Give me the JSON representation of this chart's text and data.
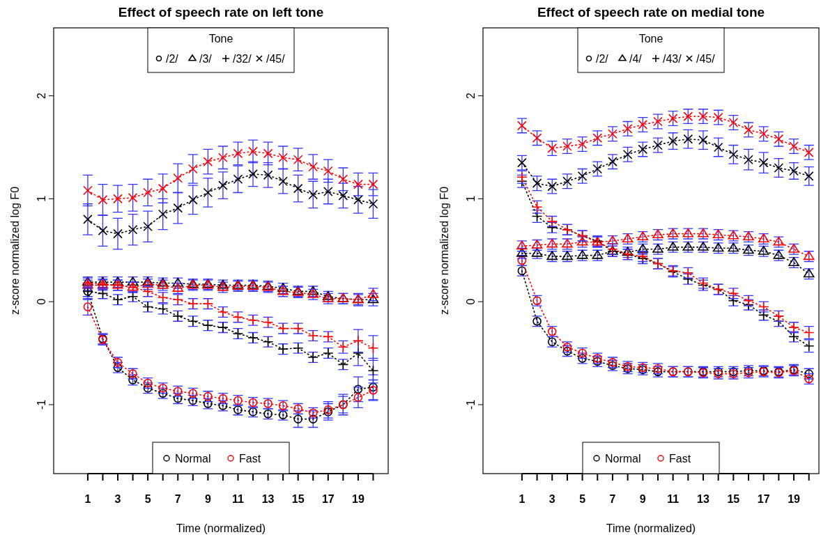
{
  "chart_data": [
    {
      "type": "line",
      "title": "Effect of speech rate on left tone",
      "xlabel": "Time (normalized)",
      "ylabel": "z-score normalized log F0",
      "legend_title": "Tone",
      "legend": "top",
      "line_style": "dotted",
      "annotations": [
        "Normal",
        "Fast"
      ],
      "x": [
        1,
        2,
        3,
        4,
        5,
        6,
        7,
        8,
        9,
        10,
        11,
        12,
        13,
        14,
        15,
        16,
        17,
        18,
        19,
        20
      ],
      "xlim": [
        -1.27,
        21.0
      ],
      "xticks": [
        1,
        {
          "value": 2,
          "label": null
        },
        3,
        {
          "value": 4,
          "label": null
        },
        5,
        {
          "value": 6,
          "label": null
        },
        7,
        {
          "value": 8,
          "label": null
        },
        9,
        {
          "value": 10,
          "label": null
        },
        11,
        {
          "value": 12,
          "label": null
        },
        13,
        {
          "value": 14,
          "label": null
        },
        15,
        {
          "value": 16,
          "label": null
        },
        17,
        {
          "value": 18,
          "label": null
        },
        19,
        {
          "value": 20,
          "label": null
        }
      ],
      "ylim": [
        -1.67,
        2.66
      ],
      "yticks": [
        -1,
        0,
        1,
        2
      ],
      "series": [
        {
          "name": "/2/",
          "color": "#000000",
          "marker": "circle",
          "values": [
            0.1,
            -0.36,
            -0.64,
            -0.76,
            -0.84,
            -0.89,
            -0.94,
            -0.96,
            -0.99,
            -1.01,
            -1.05,
            -1.07,
            -1.09,
            -1.1,
            -1.14,
            -1.14,
            -1.07,
            -1.0,
            -0.85,
            -0.83
          ],
          "errors": [
            0.05,
            0.05,
            0.05,
            0.05,
            0.05,
            0.05,
            0.05,
            0.05,
            0.05,
            0.05,
            0.05,
            0.05,
            0.05,
            0.05,
            0.08,
            0.08,
            0.08,
            0.1,
            0.12,
            0.12
          ]
        },
        {
          "color": "#ff0000",
          "marker": "circle",
          "values": [
            -0.05,
            -0.37,
            -0.59,
            -0.7,
            -0.79,
            -0.84,
            -0.87,
            -0.89,
            -0.92,
            -0.94,
            -0.96,
            -0.98,
            -0.99,
            -1.01,
            -1.04,
            -1.08,
            -1.05,
            -1.0,
            -0.93,
            -0.86
          ],
          "errors": [
            0.08,
            0.05,
            0.05,
            0.05,
            0.05,
            0.05,
            0.05,
            0.05,
            0.05,
            0.05,
            0.05,
            0.05,
            0.05,
            0.05,
            0.05,
            0.05,
            0.08,
            0.08,
            0.1,
            0.1
          ]
        },
        {
          "name": "/3/",
          "color": "#000000",
          "marker": "triangle",
          "values": [
            0.19,
            0.19,
            0.19,
            0.19,
            0.19,
            0.18,
            0.18,
            0.17,
            0.17,
            0.16,
            0.16,
            0.16,
            0.15,
            0.13,
            0.1,
            0.1,
            0.05,
            0.03,
            0.02,
            0.02
          ],
          "errors": [
            0.05,
            0.05,
            0.05,
            0.05,
            0.05,
            0.05,
            0.05,
            0.05,
            0.05,
            0.05,
            0.05,
            0.05,
            0.05,
            0.05,
            0.05,
            0.05,
            0.05,
            0.05,
            0.06,
            0.06
          ]
        },
        {
          "color": "#ff0000",
          "marker": "triangle",
          "values": [
            0.16,
            0.16,
            0.16,
            0.14,
            0.17,
            0.16,
            0.13,
            0.16,
            0.16,
            0.14,
            0.15,
            0.15,
            0.14,
            0.1,
            0.09,
            0.07,
            0.03,
            0.03,
            0.02,
            0.07
          ],
          "errors": [
            0.05,
            0.05,
            0.05,
            0.05,
            0.05,
            0.05,
            0.05,
            0.05,
            0.05,
            0.05,
            0.05,
            0.05,
            0.05,
            0.05,
            0.05,
            0.05,
            0.05,
            0.05,
            0.05,
            0.06
          ]
        },
        {
          "name": "/32/",
          "color": "#000000",
          "marker": "cross",
          "values": [
            0.1,
            0.08,
            0.02,
            0.05,
            -0.05,
            -0.07,
            -0.14,
            -0.19,
            -0.23,
            -0.25,
            -0.31,
            -0.35,
            -0.39,
            -0.46,
            -0.45,
            -0.54,
            -0.5,
            -0.61,
            -0.5,
            -0.67
          ],
          "errors": [
            0.08,
            0.05,
            0.05,
            0.05,
            0.05,
            0.05,
            0.05,
            0.05,
            0.05,
            0.05,
            0.05,
            0.05,
            0.05,
            0.05,
            0.05,
            0.05,
            0.05,
            0.05,
            0.12,
            0.12
          ]
        },
        {
          "color": "#ff0000",
          "marker": "cross",
          "values": [
            0.18,
            0.17,
            0.16,
            0.14,
            0.1,
            0.04,
            0.02,
            -0.02,
            -0.02,
            -0.1,
            -0.15,
            -0.18,
            -0.2,
            -0.26,
            -0.26,
            -0.33,
            -0.34,
            -0.44,
            -0.38,
            -0.45
          ],
          "errors": [
            0.05,
            0.05,
            0.05,
            0.05,
            0.05,
            0.05,
            0.05,
            0.05,
            0.05,
            0.05,
            0.05,
            0.05,
            0.05,
            0.05,
            0.05,
            0.05,
            0.05,
            0.06,
            0.11,
            0.12
          ]
        },
        {
          "name": "/45/",
          "color": "#000000",
          "marker": "x",
          "values": [
            0.8,
            0.69,
            0.66,
            0.7,
            0.73,
            0.85,
            0.91,
            0.99,
            1.06,
            1.13,
            1.19,
            1.24,
            1.23,
            1.17,
            1.1,
            1.04,
            1.07,
            1.03,
            0.99,
            0.95
          ],
          "errors": [
            0.15,
            0.15,
            0.15,
            0.15,
            0.15,
            0.15,
            0.15,
            0.14,
            0.14,
            0.13,
            0.13,
            0.12,
            0.12,
            0.12,
            0.13,
            0.13,
            0.12,
            0.12,
            0.13,
            0.14
          ]
        },
        {
          "color": "#ff0000",
          "marker": "x",
          "values": [
            1.08,
            0.99,
            1.0,
            1.01,
            1.06,
            1.1,
            1.2,
            1.29,
            1.36,
            1.4,
            1.44,
            1.46,
            1.44,
            1.4,
            1.38,
            1.31,
            1.27,
            1.19,
            1.14,
            1.14
          ],
          "errors": [
            0.15,
            0.15,
            0.13,
            0.13,
            0.13,
            0.14,
            0.14,
            0.14,
            0.12,
            0.11,
            0.11,
            0.11,
            0.11,
            0.11,
            0.11,
            0.12,
            0.11,
            0.11,
            0.11,
            0.11
          ]
        }
      ]
    },
    {
      "type": "line",
      "title": "Effect of speech rate on medial tone",
      "xlabel": "Time (normalized)",
      "ylabel": "z-score normalized log F0",
      "legend_title": "Tone",
      "legend": "top",
      "line_style": "dotted",
      "annotations": [
        "Normal",
        "Fast"
      ],
      "x": [
        1,
        2,
        3,
        4,
        5,
        6,
        7,
        8,
        9,
        10,
        11,
        12,
        13,
        14,
        15,
        16,
        17,
        18,
        19,
        20
      ],
      "xlim": [
        -1.58,
        20.66
      ],
      "xticks": [
        1,
        {
          "value": 2,
          "label": null
        },
        3,
        {
          "value": 4,
          "label": null
        },
        5,
        {
          "value": 6,
          "label": null
        },
        7,
        {
          "value": 8,
          "label": null
        },
        9,
        {
          "value": 10,
          "label": null
        },
        11,
        {
          "value": 12,
          "label": null
        },
        13,
        {
          "value": 14,
          "label": null
        },
        15,
        {
          "value": 16,
          "label": null
        },
        17,
        {
          "value": 18,
          "label": null
        },
        19,
        {
          "value": 20,
          "label": null
        }
      ],
      "ylim": [
        -1.67,
        2.66
      ],
      "yticks": [
        -1,
        0,
        1,
        2
      ],
      "series": [
        {
          "name": "/2/",
          "color": "#000000",
          "marker": "circle",
          "values": [
            0.3,
            -0.19,
            -0.39,
            -0.48,
            -0.55,
            -0.58,
            -0.62,
            -0.65,
            -0.66,
            -0.68,
            -0.68,
            -0.68,
            -0.68,
            -0.68,
            -0.68,
            -0.67,
            -0.67,
            -0.68,
            -0.66,
            -0.7
          ],
          "errors": [
            0.05,
            0.05,
            0.05,
            0.05,
            0.05,
            0.05,
            0.05,
            0.05,
            0.05,
            0.05,
            0.05,
            0.05,
            0.05,
            0.05,
            0.05,
            0.05,
            0.05,
            0.05,
            0.05,
            0.05
          ]
        },
        {
          "color": "#ff0000",
          "marker": "circle",
          "values": [
            0.4,
            0.01,
            -0.29,
            -0.44,
            -0.5,
            -0.55,
            -0.59,
            -0.63,
            -0.64,
            -0.65,
            -0.68,
            -0.68,
            -0.69,
            -0.7,
            -0.7,
            -0.69,
            -0.68,
            -0.69,
            -0.67,
            -0.75
          ],
          "errors": [
            0.05,
            0.05,
            0.05,
            0.05,
            0.05,
            0.05,
            0.05,
            0.05,
            0.05,
            0.05,
            0.05,
            0.05,
            0.05,
            0.05,
            0.05,
            0.05,
            0.05,
            0.05,
            0.05,
            0.05
          ]
        },
        {
          "name": "/4/",
          "color": "#000000",
          "marker": "triangle",
          "values": [
            0.47,
            0.47,
            0.44,
            0.44,
            0.45,
            0.45,
            0.49,
            0.48,
            0.51,
            0.51,
            0.53,
            0.53,
            0.53,
            0.52,
            0.52,
            0.5,
            0.49,
            0.45,
            0.38,
            0.27
          ],
          "errors": [
            0.05,
            0.05,
            0.05,
            0.05,
            0.05,
            0.05,
            0.05,
            0.05,
            0.05,
            0.05,
            0.05,
            0.05,
            0.05,
            0.05,
            0.05,
            0.05,
            0.05,
            0.05,
            0.05,
            0.05
          ]
        },
        {
          "color": "#ff0000",
          "marker": "triangle",
          "values": [
            0.54,
            0.55,
            0.56,
            0.56,
            0.58,
            0.58,
            0.59,
            0.61,
            0.63,
            0.65,
            0.66,
            0.66,
            0.66,
            0.65,
            0.64,
            0.63,
            0.61,
            0.58,
            0.51,
            0.44
          ],
          "errors": [
            0.05,
            0.05,
            0.05,
            0.05,
            0.05,
            0.05,
            0.05,
            0.05,
            0.05,
            0.05,
            0.05,
            0.05,
            0.05,
            0.05,
            0.05,
            0.05,
            0.05,
            0.05,
            0.05,
            0.05
          ]
        },
        {
          "name": "/43/",
          "color": "#000000",
          "marker": "cross",
          "values": [
            1.17,
            0.83,
            0.72,
            0.7,
            0.64,
            0.59,
            0.49,
            0.46,
            0.42,
            0.37,
            0.29,
            0.22,
            0.16,
            0.12,
            0.01,
            -0.03,
            -0.13,
            -0.19,
            -0.34,
            -0.43
          ],
          "errors": [
            0.06,
            0.06,
            0.05,
            0.05,
            0.05,
            0.05,
            0.05,
            0.05,
            0.05,
            0.05,
            0.05,
            0.05,
            0.05,
            0.05,
            0.05,
            0.05,
            0.05,
            0.05,
            0.05,
            0.06
          ]
        },
        {
          "color": "#ff0000",
          "marker": "cross",
          "values": [
            1.21,
            0.92,
            0.78,
            0.7,
            0.64,
            0.58,
            0.51,
            0.46,
            0.44,
            0.37,
            0.3,
            0.28,
            0.18,
            0.12,
            0.08,
            0.01,
            -0.05,
            -0.14,
            -0.25,
            -0.3
          ],
          "errors": [
            0.06,
            0.06,
            0.05,
            0.05,
            0.05,
            0.05,
            0.05,
            0.05,
            0.05,
            0.05,
            0.05,
            0.05,
            0.05,
            0.05,
            0.05,
            0.05,
            0.05,
            0.05,
            0.05,
            0.06
          ]
        },
        {
          "name": "/45/",
          "color": "#000000",
          "marker": "x",
          "values": [
            1.35,
            1.15,
            1.12,
            1.17,
            1.22,
            1.29,
            1.36,
            1.43,
            1.48,
            1.52,
            1.56,
            1.58,
            1.57,
            1.5,
            1.43,
            1.38,
            1.35,
            1.3,
            1.27,
            1.22
          ],
          "errors": [
            0.07,
            0.07,
            0.07,
            0.07,
            0.07,
            0.07,
            0.07,
            0.07,
            0.07,
            0.07,
            0.08,
            0.09,
            0.09,
            0.09,
            0.09,
            0.1,
            0.1,
            0.09,
            0.08,
            0.09
          ]
        },
        {
          "color": "#ff0000",
          "marker": "x",
          "values": [
            1.71,
            1.59,
            1.49,
            1.51,
            1.53,
            1.59,
            1.63,
            1.68,
            1.72,
            1.75,
            1.78,
            1.8,
            1.8,
            1.79,
            1.74,
            1.67,
            1.63,
            1.58,
            1.51,
            1.45
          ],
          "errors": [
            0.07,
            0.07,
            0.07,
            0.07,
            0.07,
            0.07,
            0.07,
            0.07,
            0.07,
            0.07,
            0.07,
            0.07,
            0.07,
            0.07,
            0.07,
            0.07,
            0.07,
            0.07,
            0.07,
            0.07
          ]
        }
      ]
    }
  ]
}
